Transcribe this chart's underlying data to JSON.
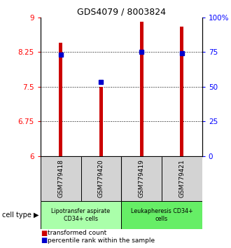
{
  "title": "GDS4079 / 8003824",
  "samples": [
    "GSM779418",
    "GSM779420",
    "GSM779419",
    "GSM779421"
  ],
  "red_values": [
    8.45,
    7.5,
    8.9,
    8.8
  ],
  "blue_values": [
    8.2,
    7.6,
    8.26,
    8.22
  ],
  "ylim_left": [
    6,
    9
  ],
  "ylim_right": [
    0,
    100
  ],
  "left_ticks": [
    6,
    6.75,
    7.5,
    8.25,
    9
  ],
  "right_ticks": [
    0,
    25,
    50,
    75,
    100
  ],
  "right_tick_labels": [
    "0",
    "25",
    "50",
    "75",
    "100%"
  ],
  "groups": [
    {
      "label": "Lipotransfer aspirate\nCD34+ cells",
      "samples": [
        0,
        1
      ],
      "color": "#aaffaa"
    },
    {
      "label": "Leukapheresis CD34+\ncells",
      "samples": [
        2,
        3
      ],
      "color": "#66ee66"
    }
  ],
  "red_color": "#cc0000",
  "blue_color": "#0000cc",
  "bar_width": 0.09,
  "cell_type_label": "cell type",
  "legend_red": "transformed count",
  "legend_blue": "percentile rank within the sample"
}
